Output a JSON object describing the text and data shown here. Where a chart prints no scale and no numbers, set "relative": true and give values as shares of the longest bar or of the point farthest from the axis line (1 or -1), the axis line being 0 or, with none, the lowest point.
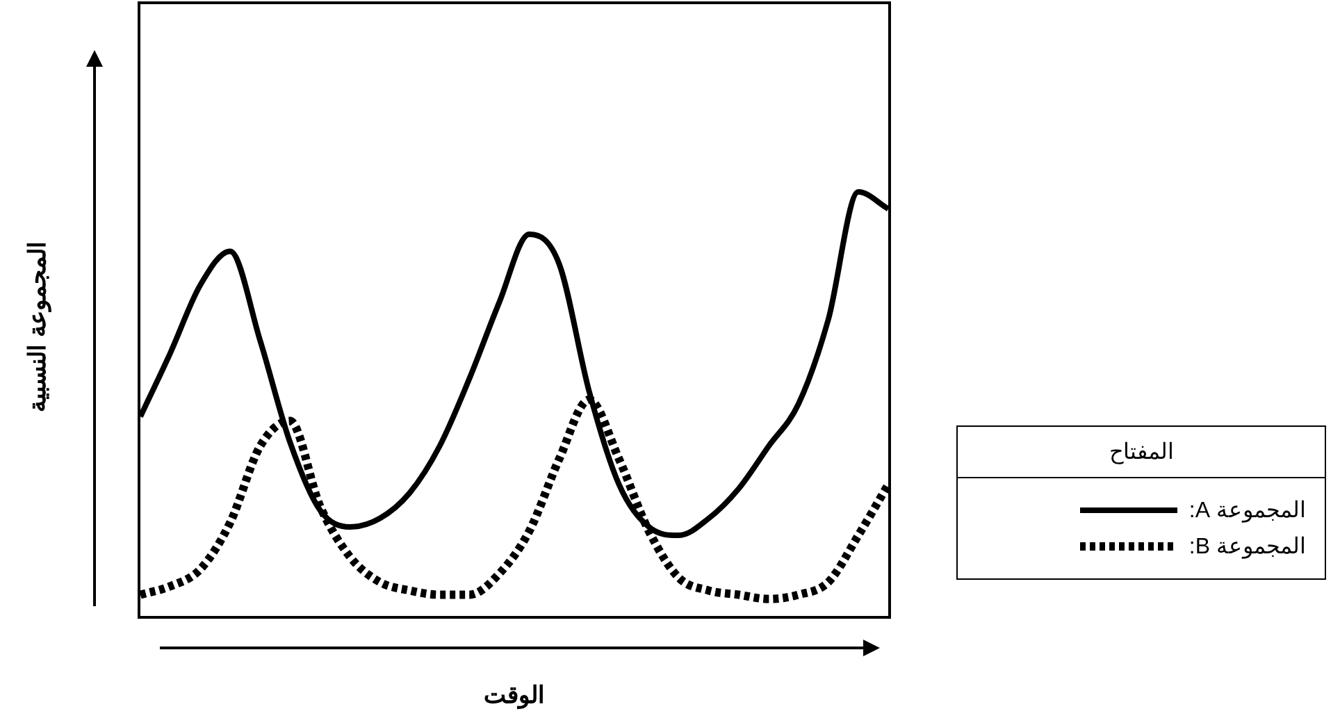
{
  "chart_data": {
    "type": "line",
    "relative": true,
    "xlabel": "الوقت",
    "ylabel": "المجموعة النسبية",
    "legend_title": "المفتاح",
    "legend": "right",
    "marker": "none",
    "categories": [
      null,
      null,
      null,
      null,
      null,
      null,
      null,
      null,
      null,
      null,
      null,
      null,
      null,
      null,
      null,
      null,
      null,
      null,
      null,
      null,
      null,
      null,
      null,
      null,
      null,
      null
    ],
    "series": [
      {
        "name": "المجموعة A:",
        "color": "#000000",
        "line_style": "solid",
        "values": [
          0.47,
          0.62,
          0.78,
          0.86,
          0.65,
          0.41,
          0.25,
          0.21,
          0.23,
          0.29,
          0.4,
          0.56,
          0.74,
          0.9,
          0.83,
          0.53,
          0.31,
          0.21,
          0.19,
          0.23,
          0.3,
          0.4,
          0.5,
          0.7,
          1.0,
          0.96
        ]
      },
      {
        "name": "المجموعة B:",
        "color": "#000000",
        "line_style": "dotted",
        "values": [
          0.05,
          0.07,
          0.11,
          0.22,
          0.4,
          0.46,
          0.26,
          0.14,
          0.08,
          0.06,
          0.05,
          0.05,
          0.1,
          0.2,
          0.37,
          0.51,
          0.37,
          0.2,
          0.09,
          0.06,
          0.05,
          0.04,
          0.05,
          0.08,
          0.19,
          0.31
        ]
      }
    ]
  }
}
